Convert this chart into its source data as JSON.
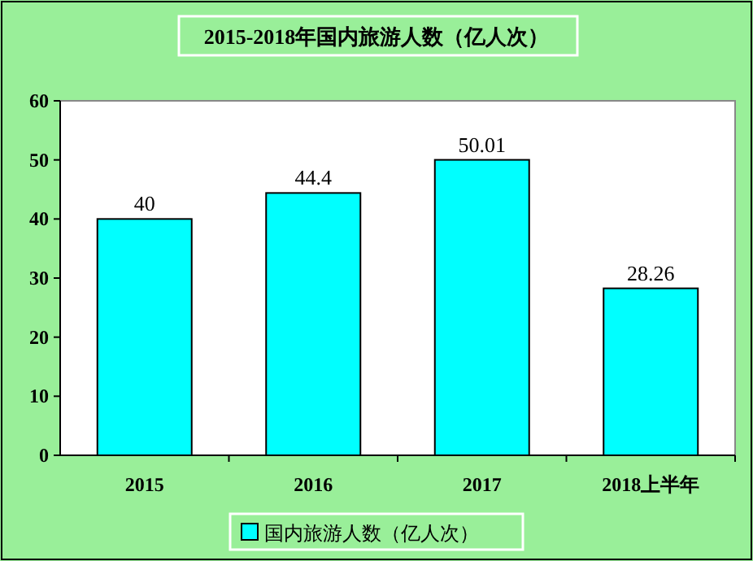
{
  "chart_data": {
    "type": "bar",
    "title": "2015-2018年国内旅游人数（亿人次）",
    "categories": [
      "2015",
      "2016",
      "2017",
      "2018上半年"
    ],
    "series": [
      {
        "name": "国内旅游人数（亿人次）",
        "color": "#00ffff",
        "values": [
          40,
          44.4,
          50.01,
          28.26
        ]
      }
    ],
    "ylim": [
      0,
      60
    ],
    "yticks": [
      0,
      10,
      20,
      30,
      40,
      50,
      60
    ],
    "data_labels": true,
    "legend": "bottom"
  }
}
